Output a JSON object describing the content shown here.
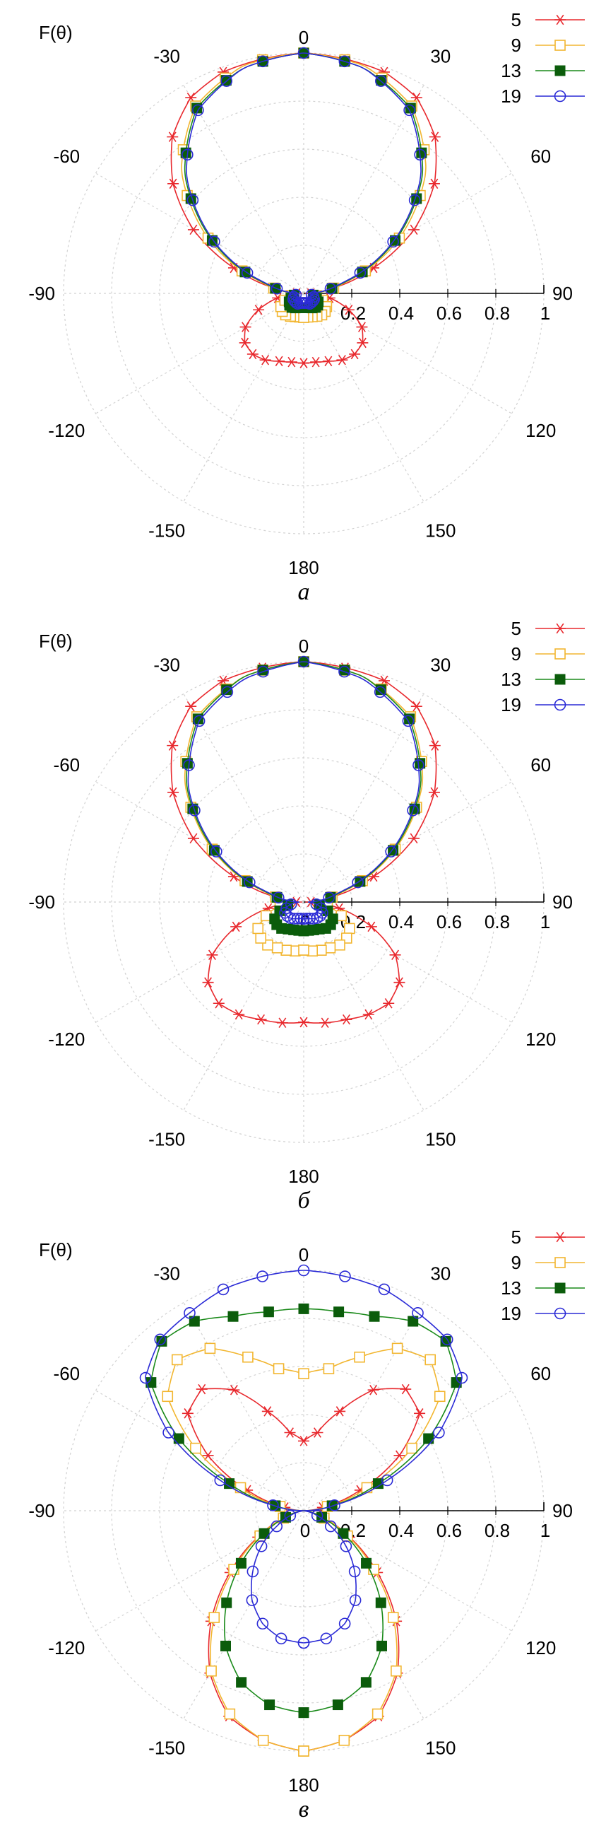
{
  "chart_data": [
    {
      "type": "polar-line",
      "caption": "а",
      "ylabel": "F(θ)",
      "angle_ticks": [
        "0",
        "30",
        "60",
        "90",
        "120",
        "150",
        "180",
        "-150",
        "-120",
        "-90",
        "-60",
        "-30"
      ],
      "radial_ticks": [
        "0",
        "0.2",
        "0.4",
        "0.6",
        "0.8",
        "1"
      ],
      "rlim": [
        0,
        1
      ],
      "grid": true,
      "legend_position": "top-right",
      "series": [
        {
          "name": "5",
          "color": "#e8282d",
          "marker": "asterisk",
          "bulge": 0.1,
          "theta": [
            -180,
            -170,
            -160,
            -150,
            -140,
            -130,
            -120,
            -110,
            -100,
            -90,
            -80,
            -70,
            -60,
            -50,
            -40,
            -30,
            -20,
            -10,
            0,
            10,
            20,
            30,
            40,
            50,
            60,
            70,
            80,
            90,
            100,
            110,
            120,
            130,
            140,
            150,
            160,
            170,
            180
          ],
          "r": [
            0.29,
            0.29,
            0.3,
            0.32,
            0.33,
            0.32,
            0.28,
            0.2,
            0.11,
            0.03,
            0.12,
            0.31,
            0.53,
            0.71,
            0.85,
            0.94,
            0.98,
            0.99,
            1.0,
            0.99,
            0.98,
            0.94,
            0.85,
            0.71,
            0.53,
            0.31,
            0.12,
            0.03,
            0.11,
            0.2,
            0.28,
            0.32,
            0.33,
            0.32,
            0.3,
            0.29,
            0.29
          ]
        },
        {
          "name": "9",
          "color": "#f2b630",
          "marker": "square-open",
          "bulge": 0.05,
          "theta": [
            -180,
            -165,
            -150,
            -135,
            -120,
            -105,
            -90,
            -75,
            -60,
            -45,
            -30,
            -15,
            0,
            15,
            30,
            45,
            60,
            75,
            90,
            105,
            120,
            135,
            150,
            165,
            180
          ],
          "r": [
            0.1,
            0.1,
            0.11,
            0.12,
            0.11,
            0.07,
            0.02,
            0.18,
            0.46,
            0.72,
            0.9,
            0.98,
            1.0,
            0.98,
            0.9,
            0.72,
            0.46,
            0.18,
            0.02,
            0.07,
            0.11,
            0.12,
            0.11,
            0.1,
            0.1
          ]
        },
        {
          "name": "13",
          "color": "#1a8a1a",
          "marker": "square-filled",
          "marker_color": "#0b5c0b",
          "bulge": 0.02,
          "theta": [
            -180,
            -165,
            -150,
            -135,
            -120,
            -105,
            -90,
            -75,
            -60,
            -45,
            -30,
            -15,
            0,
            15,
            30,
            45,
            60,
            75,
            90,
            105,
            120,
            135,
            150,
            165,
            180
          ],
          "r": [
            0.06,
            0.06,
            0.07,
            0.08,
            0.07,
            0.05,
            0.02,
            0.17,
            0.44,
            0.7,
            0.89,
            0.97,
            1.0,
            0.97,
            0.89,
            0.7,
            0.44,
            0.17,
            0.02,
            0.05,
            0.07,
            0.08,
            0.07,
            0.06,
            0.06
          ]
        },
        {
          "name": "19",
          "color": "#2b2bd6",
          "marker": "circle-open",
          "bulge": 0.0,
          "theta": [
            -180,
            -165,
            -150,
            -135,
            -120,
            -105,
            -90,
            -75,
            -60,
            -45,
            -30,
            -15,
            0,
            15,
            30,
            45,
            60,
            75,
            90,
            105,
            120,
            135,
            150,
            165,
            180
          ],
          "r": [
            0.04,
            0.04,
            0.05,
            0.05,
            0.05,
            0.04,
            0.02,
            0.16,
            0.43,
            0.69,
            0.88,
            0.97,
            1.0,
            0.97,
            0.88,
            0.69,
            0.43,
            0.16,
            0.02,
            0.04,
            0.05,
            0.05,
            0.05,
            0.04,
            0.04
          ]
        }
      ]
    },
    {
      "type": "polar-line",
      "caption": "б",
      "ylabel": "F(θ)",
      "angle_ticks": [
        "0",
        "30",
        "60",
        "90",
        "120",
        "150",
        "180",
        "-150",
        "-120",
        "-90",
        "-60",
        "-30"
      ],
      "radial_ticks": [
        "0",
        "0.2",
        "0.4",
        "0.6",
        "0.8",
        "1"
      ],
      "rlim": [
        0,
        1
      ],
      "grid": true,
      "legend_position": "top-right",
      "series": [
        {
          "name": "5",
          "color": "#e8282d",
          "marker": "asterisk",
          "bulge": 0.14,
          "theta": [
            -180,
            -170,
            -160,
            -150,
            -140,
            -130,
            -120,
            -110,
            -100,
            -90,
            -80,
            -70,
            -60,
            -50,
            -40,
            -30,
            -20,
            -10,
            0,
            10,
            20,
            30,
            40,
            50,
            60,
            70,
            80,
            90,
            100,
            110,
            120,
            130,
            140,
            150,
            160,
            170,
            180
          ],
          "r": [
            0.5,
            0.51,
            0.52,
            0.54,
            0.55,
            0.52,
            0.44,
            0.3,
            0.15,
            0.03,
            0.12,
            0.31,
            0.53,
            0.71,
            0.85,
            0.94,
            0.98,
            0.99,
            1.0,
            0.99,
            0.98,
            0.94,
            0.85,
            0.71,
            0.53,
            0.31,
            0.12,
            0.03,
            0.15,
            0.3,
            0.44,
            0.52,
            0.55,
            0.54,
            0.52,
            0.51,
            0.5
          ]
        },
        {
          "name": "9",
          "color": "#f2b630",
          "marker": "square-open",
          "bulge": 0.08,
          "theta": [
            -180,
            -165,
            -150,
            -135,
            -120,
            -105,
            -90,
            -75,
            -60,
            -45,
            -30,
            -15,
            0,
            15,
            30,
            45,
            60,
            75,
            90,
            105,
            120,
            135,
            150,
            165,
            180
          ],
          "r": [
            0.2,
            0.21,
            0.22,
            0.24,
            0.22,
            0.14,
            0.02,
            0.17,
            0.44,
            0.7,
            0.89,
            0.97,
            1.0,
            0.97,
            0.89,
            0.7,
            0.44,
            0.17,
            0.02,
            0.14,
            0.22,
            0.24,
            0.22,
            0.21,
            0.2
          ]
        },
        {
          "name": "13",
          "color": "#1a8a1a",
          "marker": "square-filled",
          "marker_color": "#0b5c0b",
          "bulge": 0.03,
          "theta": [
            -180,
            -165,
            -150,
            -135,
            -120,
            -105,
            -90,
            -75,
            -60,
            -45,
            -30,
            -15,
            0,
            15,
            30,
            45,
            60,
            75,
            90,
            105,
            120,
            135,
            150,
            165,
            180
          ],
          "r": [
            0.12,
            0.12,
            0.13,
            0.15,
            0.14,
            0.09,
            0.02,
            0.16,
            0.43,
            0.69,
            0.88,
            0.97,
            1.0,
            0.97,
            0.88,
            0.69,
            0.43,
            0.16,
            0.02,
            0.09,
            0.14,
            0.15,
            0.13,
            0.12,
            0.12
          ]
        },
        {
          "name": "19",
          "color": "#2b2bd6",
          "marker": "circle-open",
          "bulge": 0.0,
          "theta": [
            -180,
            -165,
            -150,
            -135,
            -120,
            -105,
            -90,
            -75,
            -60,
            -45,
            -30,
            -15,
            0,
            15,
            30,
            45,
            60,
            75,
            90,
            105,
            120,
            135,
            150,
            165,
            180
          ],
          "r": [
            0.07,
            0.07,
            0.08,
            0.09,
            0.09,
            0.07,
            0.02,
            0.15,
            0.42,
            0.68,
            0.87,
            0.96,
            1.0,
            0.96,
            0.87,
            0.68,
            0.42,
            0.15,
            0.02,
            0.07,
            0.09,
            0.09,
            0.08,
            0.07,
            0.07
          ]
        }
      ]
    },
    {
      "type": "polar-line",
      "caption": "в",
      "ylabel": "F(θ)",
      "angle_ticks": [
        "0",
        "30",
        "60",
        "90",
        "120",
        "150",
        "180",
        "-150",
        "-120",
        "-90",
        "-60",
        "-30"
      ],
      "radial_ticks": [
        "0",
        "0.2",
        "0.4",
        "0.6",
        "0.8",
        "1"
      ],
      "rlim": [
        0,
        1
      ],
      "grid": true,
      "legend_position": "top-right",
      "series": [
        {
          "name": "5",
          "color": "#e8282d",
          "marker": "asterisk",
          "bulge": 0.0,
          "theta": [
            -180,
            -170,
            -160,
            -150,
            -140,
            -130,
            -120,
            -110,
            -100,
            -90,
            -80,
            -70,
            -60,
            -50,
            -40,
            -30,
            -20,
            -10,
            0,
            10,
            20,
            30,
            40,
            50,
            60,
            70,
            80,
            90,
            100,
            110,
            120,
            130,
            140,
            150,
            160,
            170,
            180
          ],
          "r": [
            1.0,
            0.97,
            0.91,
            0.78,
            0.6,
            0.4,
            0.22,
            0.09,
            0.02,
            0.0,
            0.08,
            0.25,
            0.46,
            0.63,
            0.66,
            0.58,
            0.44,
            0.33,
            0.29,
            0.33,
            0.44,
            0.58,
            0.66,
            0.63,
            0.46,
            0.25,
            0.08,
            0.0,
            0.02,
            0.09,
            0.22,
            0.4,
            0.6,
            0.78,
            0.91,
            0.97,
            1.0
          ]
        },
        {
          "name": "9",
          "color": "#f2b630",
          "marker": "square-open",
          "bulge": 0.0,
          "theta": [
            -180,
            -170,
            -160,
            -150,
            -140,
            -130,
            -120,
            -110,
            -100,
            -90,
            -80,
            -70,
            -60,
            -50,
            -40,
            -30,
            -20,
            -10,
            0,
            10,
            20,
            30,
            40,
            50,
            60,
            70,
            80,
            90,
            100,
            110,
            120,
            130,
            140,
            150,
            160,
            170,
            180
          ],
          "r": [
            1.0,
            0.97,
            0.9,
            0.77,
            0.58,
            0.38,
            0.21,
            0.09,
            0.02,
            0.0,
            0.1,
            0.28,
            0.52,
            0.74,
            0.82,
            0.78,
            0.68,
            0.6,
            0.57,
            0.6,
            0.68,
            0.78,
            0.82,
            0.74,
            0.52,
            0.28,
            0.1,
            0.0,
            0.02,
            0.09,
            0.21,
            0.38,
            0.58,
            0.77,
            0.9,
            0.97,
            1.0
          ]
        },
        {
          "name": "13",
          "color": "#1a8a1a",
          "marker": "square-filled",
          "marker_color": "#0b5c0b",
          "bulge": 0.0,
          "theta": [
            -180,
            -170,
            -160,
            -150,
            -140,
            -130,
            -120,
            -110,
            -100,
            -90,
            -80,
            -70,
            -60,
            -50,
            -40,
            -30,
            -20,
            -10,
            0,
            10,
            20,
            30,
            40,
            50,
            60,
            70,
            80,
            90,
            100,
            110,
            120,
            130,
            140,
            150,
            160,
            170,
            180
          ],
          "r": [
            0.84,
            0.82,
            0.76,
            0.65,
            0.5,
            0.34,
            0.19,
            0.08,
            0.02,
            0.0,
            0.12,
            0.33,
            0.6,
            0.83,
            0.92,
            0.91,
            0.86,
            0.84,
            0.84,
            0.84,
            0.86,
            0.91,
            0.92,
            0.83,
            0.6,
            0.33,
            0.12,
            0.0,
            0.02,
            0.08,
            0.19,
            0.34,
            0.5,
            0.65,
            0.76,
            0.82,
            0.84
          ]
        },
        {
          "name": "19",
          "color": "#2b2bd6",
          "marker": "circle-open",
          "bulge": 0.0,
          "theta": [
            -180,
            -170,
            -160,
            -150,
            -140,
            -130,
            -120,
            -110,
            -100,
            -90,
            -80,
            -70,
            -60,
            -50,
            -40,
            -30,
            -20,
            -10,
            0,
            10,
            20,
            30,
            40,
            50,
            60,
            70,
            80,
            90,
            100,
            110,
            120,
            130,
            140,
            150,
            160,
            170,
            180
          ],
          "r": [
            0.55,
            0.54,
            0.5,
            0.43,
            0.33,
            0.23,
            0.13,
            0.06,
            0.01,
            0.0,
            0.13,
            0.37,
            0.65,
            0.86,
            0.93,
            0.95,
            0.98,
            0.99,
            1.0,
            0.99,
            0.98,
            0.95,
            0.93,
            0.86,
            0.65,
            0.37,
            0.13,
            0.0,
            0.01,
            0.06,
            0.13,
            0.23,
            0.33,
            0.43,
            0.5,
            0.54,
            0.55
          ]
        }
      ]
    }
  ]
}
